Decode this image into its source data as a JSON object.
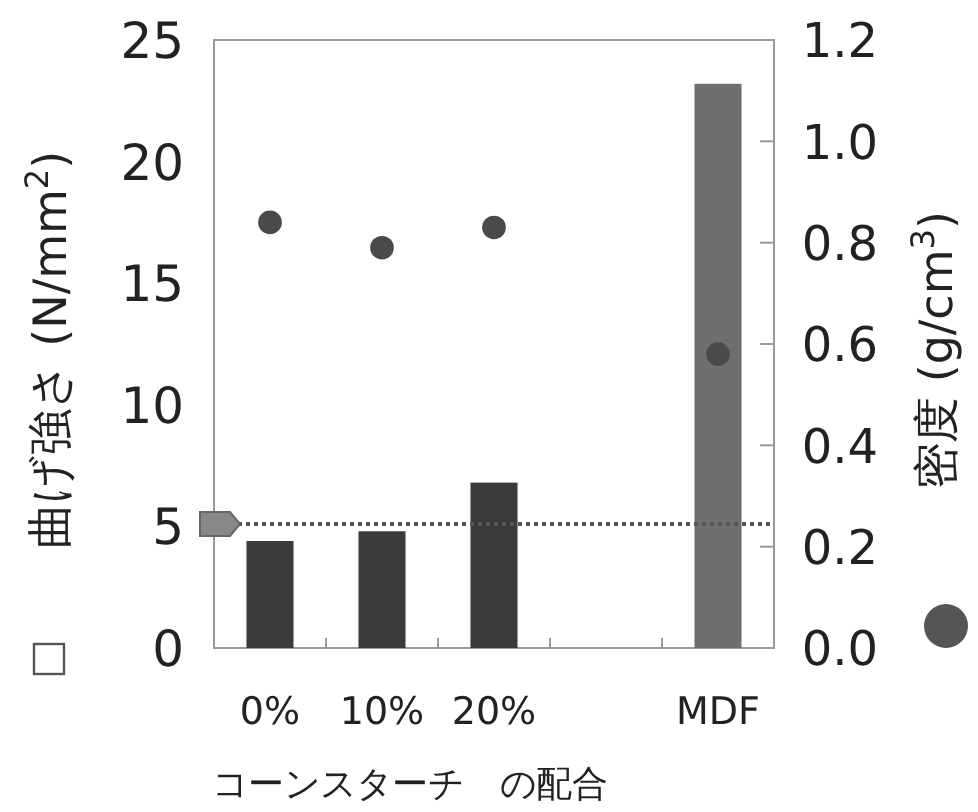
{
  "chart_data": {
    "type": "bar",
    "categories": [
      "0%",
      "10%",
      "20%",
      null,
      "MDF"
    ],
    "xlabel": "コーンスターチ　の配合",
    "ylabel": "曲げ強さ (N/mm$^{2}$)",
    "y2label": "密度 (g/cm$^{3}$)",
    "series": [
      {
        "colors": [
          "#3a3a3a",
          "#3a3a3a",
          "#3a3a3a",
          null,
          "#6f6f6f"
        ],
        "values": [
          4.4,
          4.8,
          6.8,
          null,
          23.2
        ]
      },
      {
        "type": "scatter",
        "axis": "y2",
        "color": "#4a4a4a",
        "marker": "circle",
        "values": [
          0.84,
          0.79,
          0.83,
          null,
          0.58
        ]
      }
    ],
    "ylim": [
      0,
      25
    ],
    "yticks": [
      0,
      5,
      10,
      15,
      20,
      25
    ],
    "y2lim": [
      0,
      1.2
    ],
    "y2ticks": [
      {
        "value": 0,
        "label": "0.0"
      },
      {
        "value": 0.2,
        "label": "0.2"
      },
      {
        "value": 0.4,
        "label": "0.4"
      },
      {
        "value": 0.6,
        "label": "0.6"
      },
      {
        "value": 0.8,
        "label": "0.8"
      },
      {
        "value": 1,
        "label": "1.0"
      },
      {
        "value": 1.2,
        "label": "1.2"
      }
    ],
    "ref_lines": [
      {
        "axis": "y",
        "value": 5.1,
        "color": "#555555",
        "line_style": "dotted"
      }
    ],
    "grid": false
  }
}
